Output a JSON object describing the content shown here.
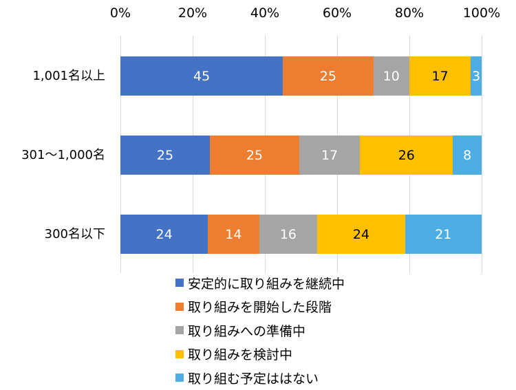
{
  "chart_data": {
    "type": "bar",
    "orientation": "horizontal",
    "stacked": "percent",
    "title": "",
    "xlabel": "",
    "ylabel": "",
    "xlim": [
      0,
      100
    ],
    "x_ticks": [
      "0%",
      "20%",
      "40%",
      "60%",
      "80%",
      "100%"
    ],
    "grid": true,
    "legend_position": "bottom",
    "categories": [
      "1,001名以上",
      "301〜1,000名",
      "300名以下"
    ],
    "series": [
      {
        "name": "安定的に取り組みを継続中",
        "color": "#4472c4",
        "label_color": "#ffffff",
        "values": [
          45,
          25,
          24
        ]
      },
      {
        "name": "取り組みを開始した段階",
        "color": "#ed7d31",
        "label_color": "#ffffff",
        "values": [
          25,
          25,
          14
        ]
      },
      {
        "name": "取り組みへの準備中",
        "color": "#a5a5a5",
        "label_color": "#ffffff",
        "values": [
          10,
          17,
          16
        ]
      },
      {
        "name": "取り組みを検討中",
        "color": "#ffc000",
        "label_color": "#000000",
        "values": [
          17,
          26,
          24
        ]
      },
      {
        "name": "取り組む予定ははない",
        "color": "#4eaee4",
        "label_color": "#ffffff",
        "values": [
          3,
          8,
          21
        ]
      }
    ]
  }
}
